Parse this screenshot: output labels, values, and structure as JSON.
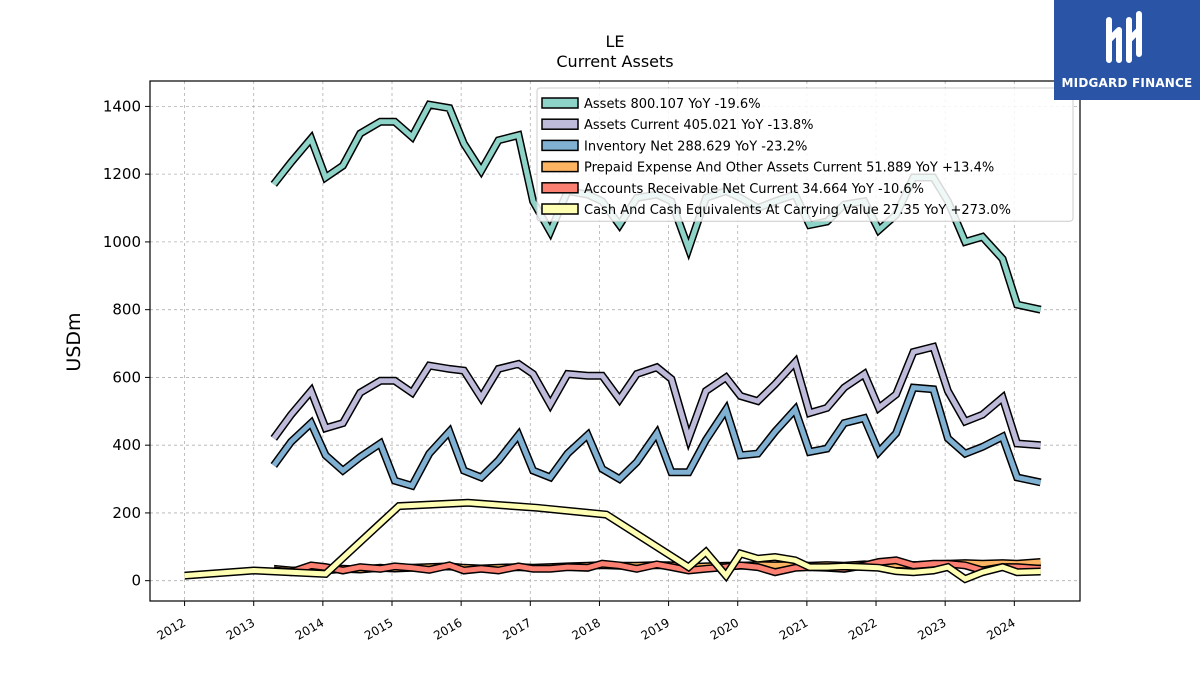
{
  "title_line1": "LE",
  "title_line2": "Current  Assets",
  "ylabel": "USDm",
  "logo_text": "MIDGARD FINANCE",
  "colors": {
    "logo_bg": "#2a55a6"
  },
  "chart_data": {
    "type": "line",
    "title": "LE\nCurrent  Assets",
    "ylabel": "USDm",
    "xlabel": "",
    "xlim": [
      2011.5,
      2024.95
    ],
    "ylim": [
      -60,
      1475
    ],
    "yticks": [
      0,
      200,
      400,
      600,
      800,
      1000,
      1200,
      1400
    ],
    "xticks": [
      "2012",
      "2013",
      "2014",
      "2015",
      "2016",
      "2017",
      "2018",
      "2019",
      "2020",
      "2021",
      "2022",
      "2023",
      "2024"
    ],
    "grid": true,
    "legend_position": "top-right",
    "series": [
      {
        "name": "Assets  800.107 YoY -19.6%",
        "color": "#8dd3c7",
        "x": [
          2013.29,
          2013.54,
          2013.83,
          2014.04,
          2014.29,
          2014.54,
          2014.83,
          2015.04,
          2015.29,
          2015.54,
          2015.83,
          2016.04,
          2016.29,
          2016.54,
          2016.83,
          2017.04,
          2017.29,
          2017.54,
          2017.83,
          2018.04,
          2018.29,
          2018.54,
          2018.83,
          2019.04,
          2019.29,
          2019.54,
          2019.83,
          2020.04,
          2020.29,
          2020.54,
          2020.83,
          2021.04,
          2021.29,
          2021.54,
          2021.83,
          2022.04,
          2022.29,
          2022.54,
          2022.83,
          2023.04,
          2023.29,
          2023.54,
          2023.83,
          2024.04,
          2024.38
        ],
        "values": [
          1170,
          1235,
          1305,
          1190,
          1225,
          1320,
          1355,
          1355,
          1310,
          1405,
          1395,
          1290,
          1210,
          1300,
          1315,
          1120,
          1030,
          1150,
          1140,
          1120,
          1050,
          1130,
          1140,
          1120,
          980,
          1130,
          1150,
          1130,
          1100,
          1120,
          1140,
          1050,
          1060,
          1110,
          1120,
          1035,
          1080,
          1190,
          1190,
          1120,
          1000,
          1015,
          950,
          815,
          800
        ]
      },
      {
        "name": "Assets Current  405.021 YoY -13.8%",
        "color": "#bebada",
        "x": [
          2013.29,
          2013.54,
          2013.83,
          2014.04,
          2014.29,
          2014.54,
          2014.83,
          2015.04,
          2015.29,
          2015.54,
          2015.83,
          2016.04,
          2016.29,
          2016.54,
          2016.83,
          2017.04,
          2017.29,
          2017.54,
          2017.83,
          2018.04,
          2018.29,
          2018.54,
          2018.83,
          2019.04,
          2019.29,
          2019.54,
          2019.83,
          2020.04,
          2020.29,
          2020.54,
          2020.83,
          2021.04,
          2021.29,
          2021.54,
          2021.83,
          2022.04,
          2022.29,
          2022.54,
          2022.83,
          2023.04,
          2023.29,
          2023.54,
          2023.83,
          2024.04,
          2024.38
        ],
        "values": [
          420,
          490,
          560,
          450,
          465,
          555,
          590,
          590,
          555,
          635,
          625,
          620,
          540,
          625,
          640,
          610,
          520,
          610,
          605,
          605,
          535,
          610,
          630,
          595,
          420,
          560,
          600,
          545,
          530,
          580,
          645,
          495,
          510,
          570,
          610,
          510,
          550,
          675,
          690,
          560,
          470,
          490,
          540,
          405,
          400
        ]
      },
      {
        "name": "Inventory Net  288.629 YoY -23.2%",
        "color": "#80b1d3",
        "x": [
          2013.29,
          2013.54,
          2013.83,
          2014.04,
          2014.29,
          2014.54,
          2014.83,
          2015.04,
          2015.29,
          2015.54,
          2015.83,
          2016.04,
          2016.29,
          2016.54,
          2016.83,
          2017.04,
          2017.29,
          2017.54,
          2017.83,
          2018.04,
          2018.29,
          2018.54,
          2018.83,
          2019.04,
          2019.29,
          2019.54,
          2019.83,
          2020.04,
          2020.29,
          2020.54,
          2020.83,
          2021.04,
          2021.29,
          2021.54,
          2021.83,
          2022.04,
          2022.29,
          2022.54,
          2022.83,
          2023.04,
          2023.29,
          2023.54,
          2023.83,
          2024.04,
          2024.38
        ],
        "values": [
          340,
          410,
          465,
          370,
          325,
          365,
          405,
          295,
          280,
          375,
          440,
          325,
          305,
          355,
          430,
          325,
          305,
          375,
          430,
          330,
          300,
          350,
          435,
          320,
          320,
          415,
          505,
          370,
          375,
          440,
          505,
          380,
          390,
          465,
          480,
          380,
          435,
          570,
          565,
          420,
          375,
          395,
          425,
          305,
          290
        ]
      },
      {
        "name": "Prepaid Expense And Other Assets Current  51.889 YoY +13.4%",
        "color": "#fdb462",
        "x": [
          2013.29,
          2013.54,
          2013.83,
          2014.04,
          2014.29,
          2014.54,
          2014.83,
          2015.04,
          2015.29,
          2015.54,
          2015.83,
          2016.04,
          2016.29,
          2016.54,
          2016.83,
          2017.04,
          2017.29,
          2017.54,
          2017.83,
          2018.04,
          2018.29,
          2018.54,
          2018.83,
          2019.04,
          2019.29,
          2019.54,
          2019.83,
          2020.04,
          2020.29,
          2020.54,
          2020.83,
          2021.04,
          2021.29,
          2021.54,
          2021.83,
          2022.04,
          2022.29,
          2022.54,
          2022.83,
          2023.04,
          2023.29,
          2023.54,
          2023.83,
          2024.04,
          2024.38
        ],
        "values": [
          35,
          30,
          30,
          30,
          35,
          33,
          38,
          36,
          38,
          40,
          42,
          38,
          36,
          38,
          40,
          38,
          40,
          42,
          44,
          46,
          44,
          44,
          46,
          45,
          40,
          42,
          44,
          44,
          46,
          45,
          46,
          44,
          46,
          44,
          48,
          46,
          48,
          46,
          48,
          50,
          52,
          50,
          52,
          50,
          55
        ]
      },
      {
        "name": "Accounts Receivable Net Current  34.664 YoY -10.6%",
        "color": "#fb8072",
        "x": [
          2013.29,
          2013.54,
          2013.83,
          2014.04,
          2014.29,
          2014.54,
          2014.83,
          2015.04,
          2015.29,
          2015.54,
          2015.83,
          2016.04,
          2016.29,
          2016.54,
          2016.83,
          2017.04,
          2017.29,
          2017.54,
          2017.83,
          2018.04,
          2018.29,
          2018.54,
          2018.83,
          2019.04,
          2019.29,
          2019.54,
          2019.83,
          2020.04,
          2020.29,
          2020.54,
          2020.83,
          2021.04,
          2021.29,
          2021.54,
          2021.83,
          2022.04,
          2022.29,
          2022.54,
          2022.83,
          2023.04,
          2023.29,
          2023.54,
          2023.83,
          2024.04,
          2024.38
        ],
        "values": [
          30,
          25,
          45,
          40,
          30,
          40,
          35,
          42,
          38,
          32,
          45,
          30,
          35,
          30,
          42,
          35,
          35,
          40,
          38,
          50,
          45,
          35,
          48,
          40,
          30,
          35,
          40,
          45,
          40,
          25,
          38,
          40,
          38,
          35,
          45,
          55,
          60,
          45,
          50,
          50,
          45,
          30,
          40,
          40,
          35
        ]
      },
      {
        "name": "Cash And Cash Equivalents At Carrying Value  27.35 YoY +273.0%",
        "color": "#ffffb3",
        "x": [
          2012.0,
          2013.0,
          2014.04,
          2015.1,
          2016.1,
          2017.1,
          2018.1,
          2019.29,
          2019.54,
          2019.83,
          2020.04,
          2020.29,
          2020.54,
          2020.83,
          2021.04,
          2021.29,
          2021.54,
          2021.83,
          2022.04,
          2022.29,
          2022.54,
          2022.83,
          2023.04,
          2023.29,
          2023.54,
          2023.83,
          2024.04,
          2024.38
        ],
        "values": [
          15,
          30,
          20,
          220,
          230,
          215,
          195,
          40,
          85,
          15,
          80,
          65,
          70,
          60,
          40,
          40,
          42,
          40,
          38,
          28,
          25,
          30,
          40,
          5,
          25,
          40,
          25,
          27
        ]
      }
    ]
  }
}
